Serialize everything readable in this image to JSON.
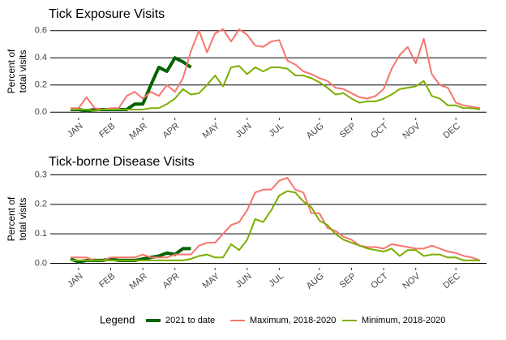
{
  "chart_data": [
    {
      "type": "line",
      "title": "Tick Exposure Visits",
      "ylabel": [
        "Percent of",
        "total visits"
      ],
      "categories": [
        null,
        "JAN",
        null,
        null,
        null,
        "FEB",
        null,
        null,
        null,
        "MAR",
        null,
        null,
        null,
        "APR",
        null,
        null,
        null,
        null,
        "MAY",
        null,
        null,
        null,
        "JUN",
        null,
        null,
        null,
        "JUL",
        null,
        null,
        null,
        null,
        "AUG",
        null,
        null,
        null,
        "SEP",
        null,
        null,
        null,
        "OCT",
        null,
        null,
        null,
        "NOV",
        null,
        null,
        null,
        null,
        "DEC",
        null,
        null,
        null
      ],
      "ylim": [
        -0.04,
        0.64
      ],
      "yticks": [
        {
          "value": 0,
          "label": "0.0"
        },
        0.2,
        0.4,
        0.6
      ],
      "grid": true,
      "series": [
        {
          "name": "2021 to date",
          "color": "#006400",
          "values": [
            0.02,
            0.02,
            0.01,
            0.02,
            0.02,
            0.02,
            0.02,
            0.02,
            0.06,
            0.06,
            0.2,
            0.33,
            0.3,
            0.4,
            0.37,
            0.33,
            null,
            null,
            null,
            null,
            null,
            null,
            null,
            null,
            null,
            null,
            null,
            null,
            null,
            null,
            null,
            null,
            null,
            null,
            null,
            null,
            null,
            null,
            null,
            null,
            null,
            null,
            null,
            null,
            null,
            null,
            null,
            null,
            null,
            null,
            null,
            null
          ]
        },
        {
          "name": "Maximum, 2018-2020",
          "color": "#f8766d",
          "values": [
            0.03,
            0.03,
            0.11,
            0.03,
            0.02,
            0.03,
            0.03,
            0.12,
            0.15,
            0.1,
            0.15,
            0.12,
            0.2,
            0.15,
            0.25,
            0.45,
            0.6,
            0.44,
            0.58,
            0.61,
            0.52,
            0.61,
            0.57,
            0.49,
            0.48,
            0.52,
            0.53,
            0.38,
            0.35,
            0.3,
            0.28,
            0.25,
            0.23,
            0.18,
            0.17,
            0.14,
            0.11,
            0.1,
            0.12,
            0.17,
            0.32,
            0.42,
            0.48,
            0.36,
            0.54,
            0.28,
            0.2,
            0.18,
            0.07,
            0.05,
            0.04,
            0.03
          ]
        },
        {
          "name": "Minimum, 2018-2020",
          "color": "#7cae00",
          "values": [
            0.02,
            0.02,
            0.02,
            0.01,
            0.02,
            0.02,
            0.02,
            0.02,
            0.02,
            0.02,
            0.03,
            0.03,
            0.06,
            0.1,
            0.17,
            0.13,
            0.14,
            0.2,
            0.27,
            0.19,
            0.33,
            0.34,
            0.28,
            0.33,
            0.3,
            0.33,
            0.33,
            0.32,
            0.27,
            0.27,
            0.25,
            0.22,
            0.18,
            0.13,
            0.14,
            0.1,
            0.07,
            0.08,
            0.08,
            0.1,
            0.13,
            0.17,
            0.18,
            0.19,
            0.23,
            0.12,
            0.1,
            0.05,
            0.05,
            0.03,
            0.03,
            0.02
          ]
        }
      ]
    },
    {
      "type": "line",
      "title": "Tick-borne Disease Visits",
      "ylabel": [
        "Percent of",
        "total visits"
      ],
      "categories": [
        null,
        "JAN",
        null,
        null,
        null,
        "FEB",
        null,
        null,
        null,
        "MAR",
        null,
        null,
        null,
        "APR",
        null,
        null,
        null,
        null,
        "MAY",
        null,
        null,
        null,
        "JUN",
        null,
        null,
        null,
        "JUL",
        null,
        null,
        null,
        null,
        "AUG",
        null,
        null,
        null,
        "SEP",
        null,
        null,
        null,
        "OCT",
        null,
        null,
        null,
        "NOV",
        null,
        null,
        null,
        null,
        "DEC",
        null,
        null,
        null
      ],
      "ylim": [
        -0.015,
        0.315
      ],
      "yticks": [
        {
          "value": 0,
          "label": "0.0"
        },
        0.1,
        0.2,
        0.3
      ],
      "grid": true,
      "series": [
        {
          "name": "2021 to date",
          "color": "#006400",
          "values": [
            0.015,
            0.005,
            0.01,
            0.01,
            0.01,
            0.015,
            0.01,
            0.01,
            0.01,
            0.015,
            0.02,
            0.025,
            0.035,
            0.03,
            0.05,
            0.05,
            null,
            null,
            null,
            null,
            null,
            null,
            null,
            null,
            null,
            null,
            null,
            null,
            null,
            null,
            null,
            null,
            null,
            null,
            null,
            null,
            null,
            null,
            null,
            null,
            null,
            null,
            null,
            null,
            null,
            null,
            null,
            null,
            null,
            null,
            null,
            null
          ]
        },
        {
          "name": "Maximum, 2018-2020",
          "color": "#f8766d",
          "values": [
            0.02,
            0.02,
            0.02,
            0.01,
            0.01,
            0.02,
            0.02,
            0.02,
            0.02,
            0.03,
            0.02,
            0.02,
            0.02,
            0.03,
            0.03,
            0.03,
            0.06,
            0.07,
            0.07,
            0.1,
            0.13,
            0.14,
            0.18,
            0.24,
            0.25,
            0.25,
            0.28,
            0.29,
            0.25,
            0.24,
            0.17,
            0.17,
            0.12,
            0.11,
            0.09,
            0.08,
            0.06,
            0.055,
            0.055,
            0.05,
            0.065,
            0.06,
            0.055,
            0.05,
            0.05,
            0.06,
            0.05,
            0.04,
            0.035,
            0.025,
            0.02,
            0.01
          ]
        },
        {
          "name": "Minimum, 2018-2020",
          "color": "#7cae00",
          "values": [
            0.01,
            0.01,
            0.01,
            0.01,
            0.01,
            0.01,
            0.01,
            0.01,
            0.01,
            0.01,
            0.01,
            0.01,
            0.01,
            0.01,
            0.01,
            0.015,
            0.025,
            0.03,
            0.02,
            0.02,
            0.065,
            0.045,
            0.08,
            0.15,
            0.14,
            0.18,
            0.23,
            0.245,
            0.24,
            0.21,
            0.19,
            0.145,
            0.13,
            0.1,
            0.08,
            0.07,
            0.06,
            0.05,
            0.045,
            0.04,
            0.05,
            0.025,
            0.045,
            0.045,
            0.025,
            0.03,
            0.03,
            0.02,
            0.02,
            0.01,
            0.01,
            0.01
          ]
        }
      ]
    }
  ],
  "legend_title": "Legend"
}
